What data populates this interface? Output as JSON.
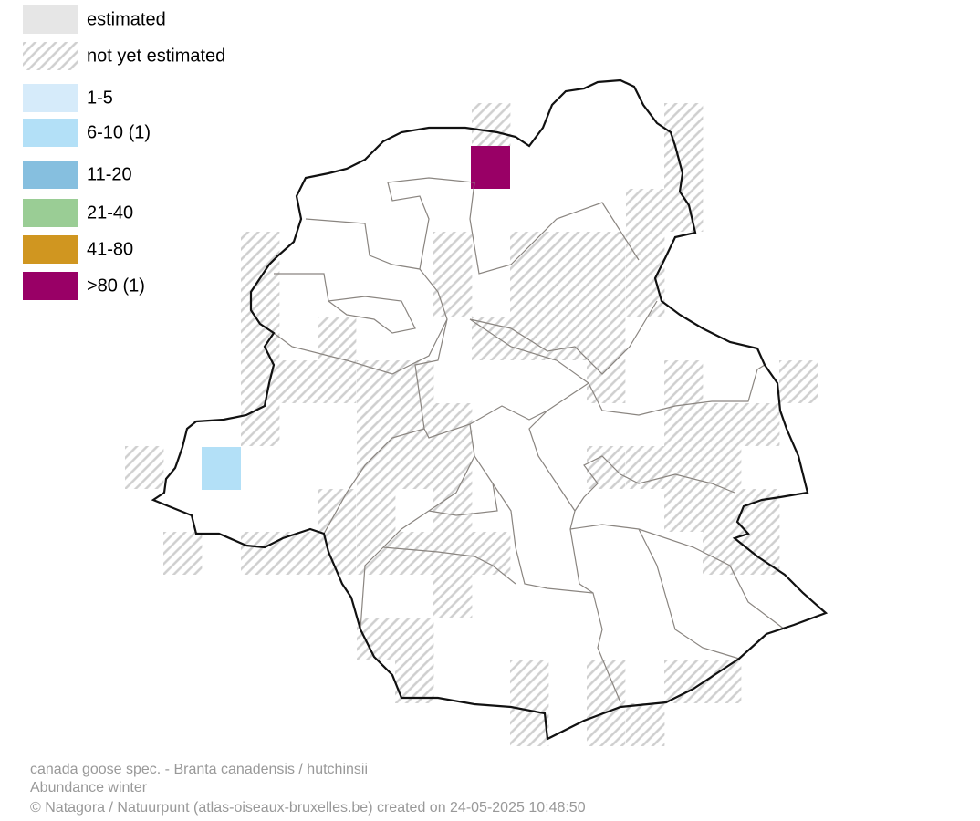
{
  "legend": [
    {
      "label": "estimated",
      "color": "#e6e6e6"
    },
    {
      "label": "not yet estimated",
      "color": "hatch"
    },
    {
      "label": "1-5",
      "color": "#d6ebfa"
    },
    {
      "label": "6-10 (1)",
      "color": "#b3e0f7"
    },
    {
      "label": "11-20",
      "color": "#86bfdf"
    },
    {
      "label": "21-40",
      "color": "#9acd95"
    },
    {
      "label": "41-80",
      "color": "#d09620"
    },
    {
      "label": ">80 (1)",
      "color": "#990066"
    }
  ],
  "footer": {
    "species": "canada goose spec. - Branta canadensis / hutchinsii",
    "season": "Abundance winter",
    "credit": "© Natagora / Natuurpunt (atlas-oiseaux-bruxelles.be) created on 24-05-2025 10:48:50"
  }
}
